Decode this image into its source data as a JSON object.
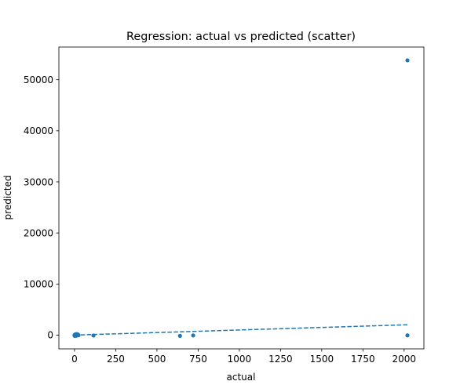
{
  "chart_data": {
    "type": "scatter",
    "title": "Regression: actual vs predicted (scatter)",
    "xlabel": "actual",
    "ylabel": "predicted",
    "xlim": [
      -95,
      2120
    ],
    "ylim": [
      -2700,
      56400
    ],
    "x_ticks": [
      0,
      250,
      500,
      750,
      1000,
      1250,
      1500,
      1750,
      2000
    ],
    "x_tick_labels": [
      "0",
      "250",
      "500",
      "750",
      "1000",
      "1250",
      "1500",
      "1750",
      "2000"
    ],
    "y_ticks": [
      0,
      10000,
      20000,
      30000,
      40000,
      50000
    ],
    "y_tick_labels": [
      "0",
      "10000",
      "20000",
      "30000",
      "40000",
      "50000"
    ],
    "grid": false,
    "marker_color": "#1f77b4",
    "line_color": "#1f77b4",
    "points": [
      {
        "x": 0,
        "y": 0
      },
      {
        "x": 1,
        "y": -150
      },
      {
        "x": 2,
        "y": 80
      },
      {
        "x": 3,
        "y": -60
      },
      {
        "x": 4,
        "y": 120
      },
      {
        "x": 5,
        "y": -100
      },
      {
        "x": 6,
        "y": 50
      },
      {
        "x": 7,
        "y": -30
      },
      {
        "x": 8,
        "y": 100
      },
      {
        "x": 10,
        "y": -120
      },
      {
        "x": 12,
        "y": 200
      },
      {
        "x": 14,
        "y": -80
      },
      {
        "x": 16,
        "y": 60
      },
      {
        "x": 18,
        "y": 150
      },
      {
        "x": 20,
        "y": -40
      },
      {
        "x": 22,
        "y": 90
      },
      {
        "x": 24,
        "y": -20
      },
      {
        "x": 115,
        "y": -80
      },
      {
        "x": 640,
        "y": -150
      },
      {
        "x": 720,
        "y": -60
      },
      {
        "x": 2020,
        "y": 53800
      },
      {
        "x": 2020,
        "y": -50
      }
    ],
    "fit_line": {
      "style": "dashed",
      "points": [
        {
          "x": 0,
          "y": 0
        },
        {
          "x": 2020,
          "y": 2020
        }
      ]
    }
  }
}
